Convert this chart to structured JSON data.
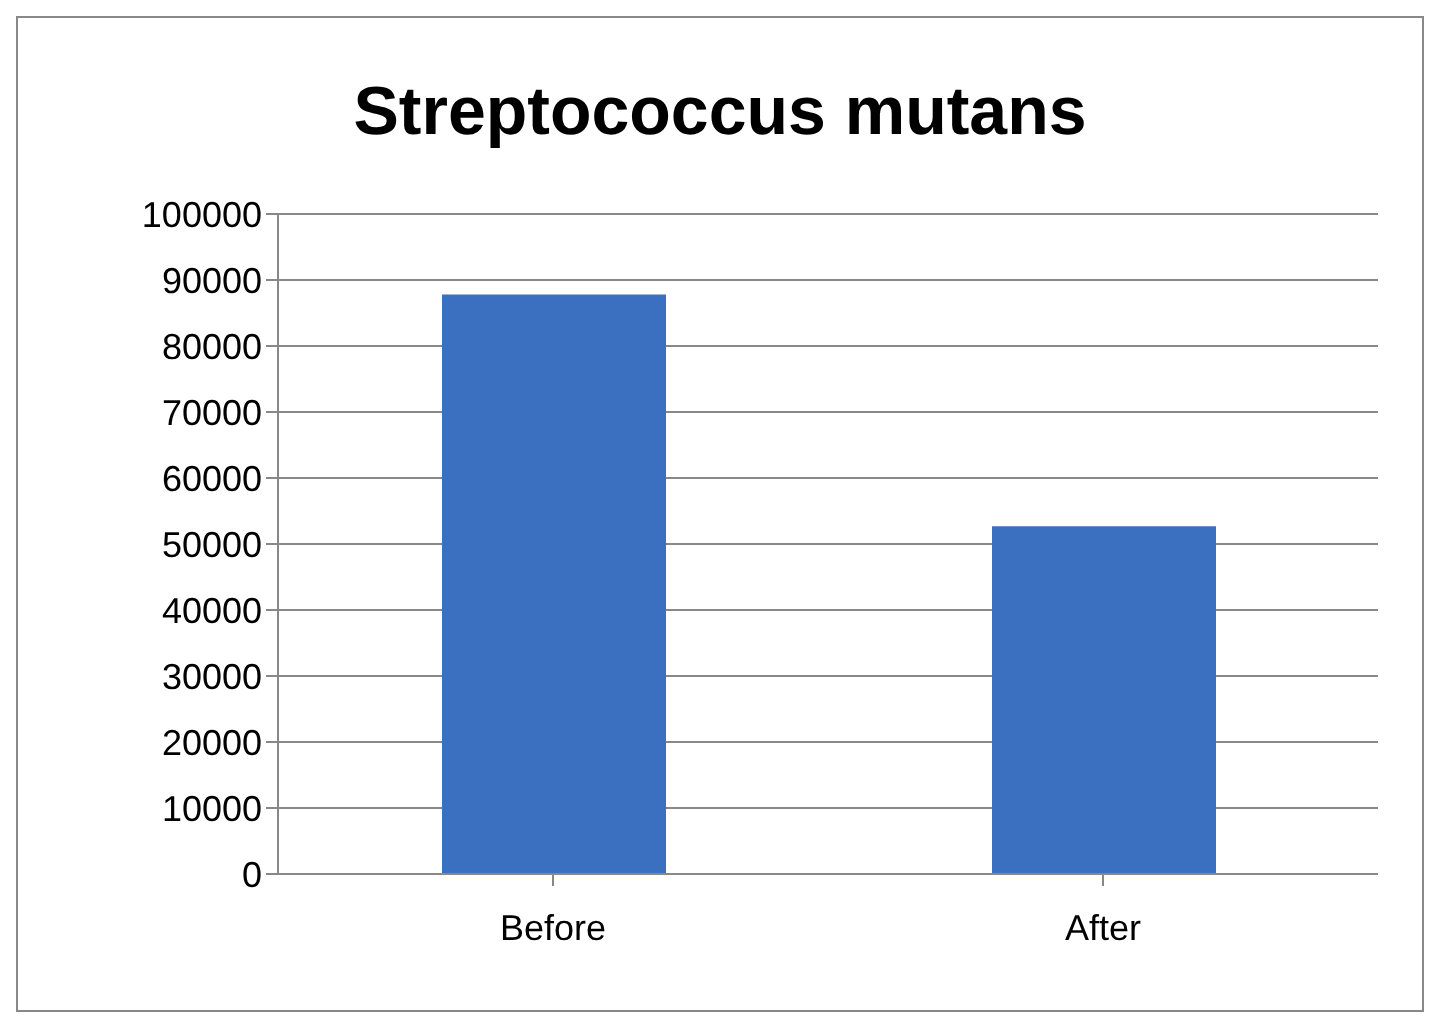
{
  "chart_data": {
    "type": "bar",
    "title": "Streptococcus mutans",
    "categories": [
      "Before",
      "After"
    ],
    "values": [
      87800,
      52700
    ],
    "color": "#3b70c0",
    "ylim": [
      0,
      100000
    ],
    "yticks": [
      0,
      10000,
      20000,
      30000,
      40000,
      50000,
      60000,
      70000,
      80000,
      90000,
      100000
    ],
    "grid": "y"
  }
}
